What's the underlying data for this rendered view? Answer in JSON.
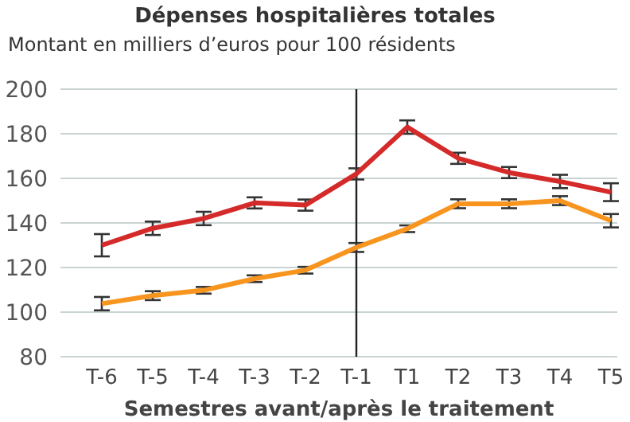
{
  "chart_data": {
    "type": "line",
    "title": "Dépenses hospitalières totales",
    "subtitle": "Montant en milliers d’euros pour 100 résidents",
    "xlabel": "Semestres avant/après le traitement",
    "categories": [
      "T-6",
      "T-5",
      "T-4",
      "T-3",
      "T-2",
      "T-1",
      "T1",
      "T2",
      "T3",
      "T4",
      "T5"
    ],
    "series": [
      {
        "color": "#d42a2a",
        "values": [
          130,
          137.6,
          142,
          149,
          148,
          162,
          183,
          169,
          162.6,
          158.6,
          153.8
        ],
        "errors": [
          5,
          3,
          3,
          2.5,
          2.5,
          2.5,
          3,
          2.5,
          2.5,
          3,
          4
        ]
      },
      {
        "color": "#f7951f",
        "values": [
          103.8,
          107.4,
          109.8,
          115,
          118.8,
          129,
          137.4,
          148.6,
          148.6,
          150,
          141
        ],
        "errors": [
          3,
          2,
          1.5,
          1.5,
          1.5,
          2,
          1.5,
          2,
          2,
          2,
          3
        ]
      }
    ],
    "ylim": [
      80,
      200
    ],
    "yticks": [
      80,
      100,
      120,
      140,
      160,
      180,
      200
    ],
    "grid": "y",
    "marker": "none",
    "line_style": "solid",
    "ref_lines": [
      {
        "axis": "x",
        "value": "T-1",
        "color": "#222222"
      }
    ]
  }
}
